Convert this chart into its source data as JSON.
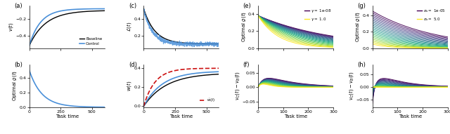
{
  "fig_width": 6.4,
  "fig_height": 1.91,
  "dpi": 100,
  "bg_color": "#ffffff",
  "panel_labels": [
    "(a)",
    "(b)",
    "(c)",
    "(d)",
    "(e)",
    "(f)",
    "(g)",
    "(h)"
  ],
  "xlabel": "Task time",
  "t_long_max": 600,
  "t_short_max": 300,
  "t_long_ticks": [
    0,
    250,
    500
  ],
  "t_short_ticks": [
    0,
    100,
    200,
    300
  ],
  "baseline_color": "#000000",
  "control_color": "#4a90d9",
  "red_dashed_color": "#cc1111",
  "gamma_cmap": "viridis",
  "sigma_cmap": "viridis",
  "n_gamma": 20,
  "gamma_min": 1e-08,
  "gamma_max": 1.0,
  "n_sigma": 20,
  "sigma_min": 1e-05,
  "sigma_max": 5.0
}
